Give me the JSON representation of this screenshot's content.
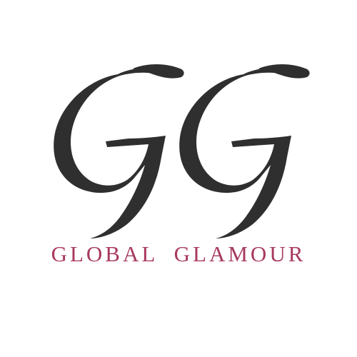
{
  "logo": {
    "monogram": "GG",
    "brand_name": "GLOBAL  GLAMOUR",
    "colors": {
      "monogram": "#2f2f2f",
      "brand_name": "#a8385f",
      "background": "#ffffff"
    }
  }
}
